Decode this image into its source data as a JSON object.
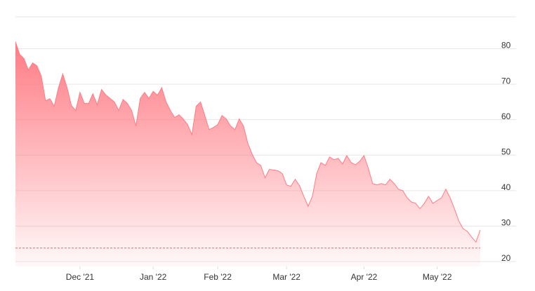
{
  "chart_data": {
    "type": "area",
    "values": [
      82,
      78.4,
      77.2,
      74,
      76,
      75.2,
      72.3,
      65.3,
      65.9,
      63.8,
      69,
      72.9,
      69,
      64,
      62.6,
      67.7,
      64.6,
      64.6,
      67.3,
      64.2,
      68.5,
      67,
      66,
      65,
      62.6,
      65.7,
      64.6,
      62.6,
      58.2,
      66,
      67.7,
      66,
      68,
      66.9,
      69,
      65,
      62.6,
      60.6,
      61.4,
      60.2,
      58.6,
      55.8,
      63.8,
      65,
      61.2,
      57.2,
      57.8,
      58.6,
      61.2,
      60.2,
      58.2,
      57.2,
      60.2,
      58.2,
      53.3,
      50.3,
      47.9,
      47.1,
      43.6,
      46,
      45.8,
      45.6,
      44.8,
      41.6,
      41.2,
      43.2,
      41.4,
      38.4,
      35.6,
      38.4,
      44.8,
      47.9,
      47.1,
      49.5,
      48.7,
      49.1,
      47.5,
      49.9,
      47.9,
      47.3,
      48.3,
      49.9,
      46.3,
      42,
      41.6,
      42,
      41.6,
      43.2,
      42,
      40.4,
      40,
      38,
      36.8,
      36.4,
      34.9,
      36.4,
      38.4,
      36.4,
      37.2,
      38,
      40.4,
      38,
      34.9,
      31.5,
      29.3,
      28.5,
      26.9,
      25.5,
      28.9
    ],
    "color": "#ff7b84",
    "xlim": [
      0,
      108
    ],
    "xticks": [
      {
        "value": 15,
        "label": "Dec '21"
      },
      {
        "value": 32,
        "label": "Jan '22"
      },
      {
        "value": 47,
        "label": "Feb '22"
      },
      {
        "value": 63,
        "label": "Mar '22"
      },
      {
        "value": 81,
        "label": "Apr '22"
      },
      {
        "value": 98,
        "label": "May '22"
      }
    ],
    "ylim": [
      20,
      89
    ],
    "yticks": [
      20,
      30,
      40,
      50,
      60,
      70,
      80
    ],
    "reference_line": 23.8,
    "grid": true
  }
}
